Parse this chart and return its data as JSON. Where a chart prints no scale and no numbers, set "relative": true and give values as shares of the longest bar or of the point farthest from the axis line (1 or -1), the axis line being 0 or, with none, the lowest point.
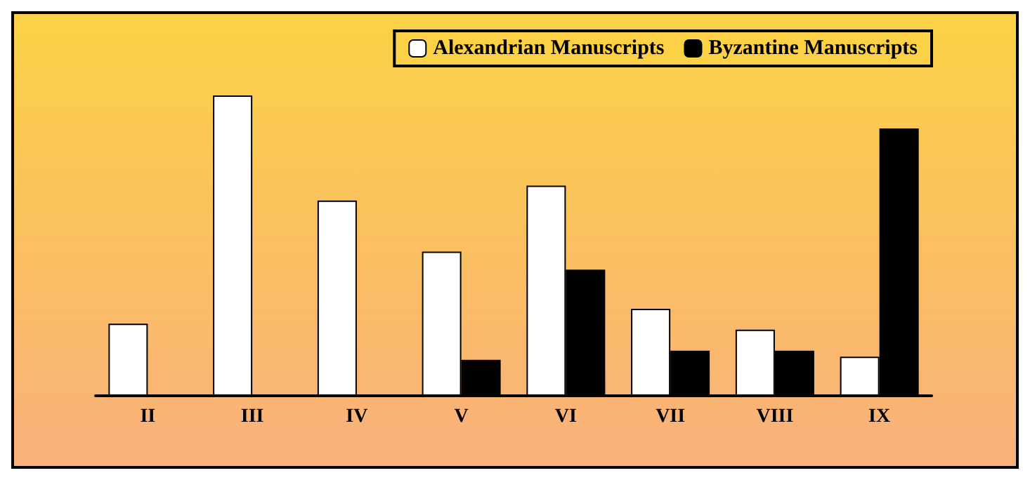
{
  "chart_data": {
    "type": "bar",
    "relative": true,
    "categories": [
      "II",
      "III",
      "IV",
      "V",
      "VI",
      "VII",
      "VIII",
      "IX"
    ],
    "series": [
      {
        "name": "Alexandrian Manuscripts",
        "color": "#ffffff",
        "values": [
          0.24,
          1,
          0.65,
          0.48,
          0.7,
          0.29,
          0.22,
          0.13
        ]
      },
      {
        "name": "Byzantine Manuscripts",
        "color": "#000000",
        "values": [
          0,
          0,
          0,
          0.12,
          0.42,
          0.15,
          0.15,
          0.89
        ]
      }
    ],
    "legend": "top right"
  }
}
